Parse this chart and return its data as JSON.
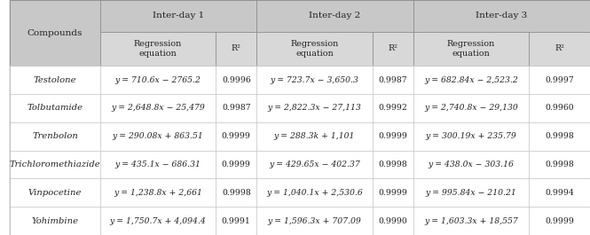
{
  "compounds": [
    "Testolone",
    "Tolbutamide",
    "Trenbolon",
    "Trichloromethiazide",
    "Vinpocetine",
    "Yohimbine"
  ],
  "interday1_eq": [
    "y = 710.6x − 2765.2",
    "y = 2,648.8x − 25,479",
    "y = 290.08x + 863.51",
    "y = 435.1x − 686.31",
    "y = 1,238.8x + 2,661",
    "y = 1,750.7x + 4,094.4"
  ],
  "interday1_r2": [
    "0.9996",
    "0.9987",
    "0.9999",
    "0.9999",
    "0.9998",
    "0.9991"
  ],
  "interday2_eq": [
    "y = 723.7x − 3,650.3",
    "y = 2,822.3x − 27,113",
    "y = 288.3k + 1,101",
    "y = 429.65x − 402.37",
    "y = 1,040.1x + 2,530.6",
    "y = 1,596.3x + 707.09"
  ],
  "interday2_r2": [
    "0.9987",
    "0.9992",
    "0.9999",
    "0.9998",
    "0.9999",
    "0.9990"
  ],
  "interday3_eq": [
    "y = 682.84x − 2,523.2",
    "y = 2,740.8x − 29,130",
    "y = 300.19x + 235.79",
    "y = 438.0x − 303.16",
    "y = 995.84x − 210.21",
    "y = 1,603.3x + 18,557"
  ],
  "interday3_r2": [
    "0.9997",
    "0.9960",
    "0.9998",
    "0.9998",
    "0.9994",
    "0.9999"
  ],
  "header_bg": "#c8c8c8",
  "subheader_bg": "#d8d8d8",
  "row_bg_odd": "#ffffff",
  "row_bg_even": "#ffffff",
  "header_text_color": "#222222",
  "cell_text_color": "#222222",
  "border_color": "#aaaaaa",
  "font_size": 7.2,
  "header_font_size": 7.5
}
